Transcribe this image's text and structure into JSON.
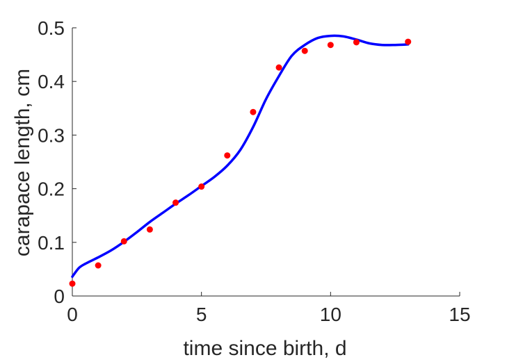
{
  "chart_data": {
    "type": "scatter",
    "title": "",
    "xlabel": "time since birth, d",
    "ylabel": "carapace length, cm",
    "xlim": [
      0,
      15
    ],
    "ylim": [
      0,
      0.5
    ],
    "xticks": [
      0,
      5,
      10,
      15
    ],
    "yticks": [
      0,
      0.1,
      0.2,
      0.3,
      0.4,
      0.5
    ],
    "xtick_labels": [
      "0",
      "5",
      "10",
      "15"
    ],
    "ytick_labels": [
      "0",
      "0.1",
      "0.2",
      "0.3",
      "0.4",
      "0.5"
    ],
    "grid": false,
    "legend": "none",
    "series": [
      {
        "kind": "scatter",
        "color": "#ff0000",
        "x": [
          0,
          1,
          2,
          3,
          4,
          5,
          6,
          7,
          8,
          9,
          10,
          11,
          13
        ],
        "y": [
          0.023,
          0.057,
          0.102,
          0.124,
          0.174,
          0.204,
          0.262,
          0.343,
          0.426,
          0.457,
          0.468,
          0.473,
          0.474
        ]
      },
      {
        "kind": "line",
        "color": "#0000ff",
        "x": [
          0,
          0.25,
          0.5,
          1,
          1.5,
          2,
          2.5,
          3,
          3.5,
          4,
          4.5,
          5,
          5.5,
          6,
          6.5,
          7,
          7.5,
          8,
          8.5,
          9,
          9.5,
          10,
          10.5,
          11,
          11.5,
          12,
          12.5,
          13
        ],
        "y": [
          0.036,
          0.052,
          0.06,
          0.072,
          0.085,
          0.101,
          0.119,
          0.138,
          0.155,
          0.172,
          0.188,
          0.205,
          0.222,
          0.243,
          0.272,
          0.315,
          0.367,
          0.41,
          0.448,
          0.468,
          0.481,
          0.485,
          0.484,
          0.478,
          0.471,
          0.468,
          0.468,
          0.469
        ]
      }
    ]
  }
}
